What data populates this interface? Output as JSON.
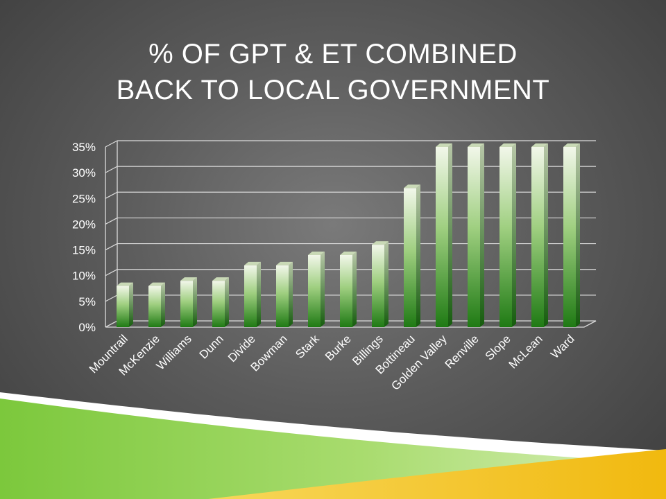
{
  "title": {
    "line1": "% of GPT & ET Combined",
    "line2": "Back to Local Government"
  },
  "chart_data": {
    "type": "bar",
    "categories": [
      "Mountrail",
      "McKenzie",
      "Williams",
      "Dunn",
      "Divide",
      "Bowman",
      "Stark",
      "Burke",
      "Billings",
      "Bottineau",
      "Golden Valley",
      "Renville",
      "Slope",
      "McLean",
      "Ward"
    ],
    "values": [
      8,
      8,
      9,
      9,
      12,
      12,
      14,
      14,
      16,
      27,
      35,
      35,
      35,
      35,
      35
    ],
    "yticks": [
      "0%",
      "5%",
      "10%",
      "15%",
      "20%",
      "25%",
      "30%",
      "35%"
    ],
    "ylim": [
      0,
      35
    ],
    "grid": true,
    "bar_color": "#2e8b22",
    "bar_highlight": "#eef5e2"
  }
}
